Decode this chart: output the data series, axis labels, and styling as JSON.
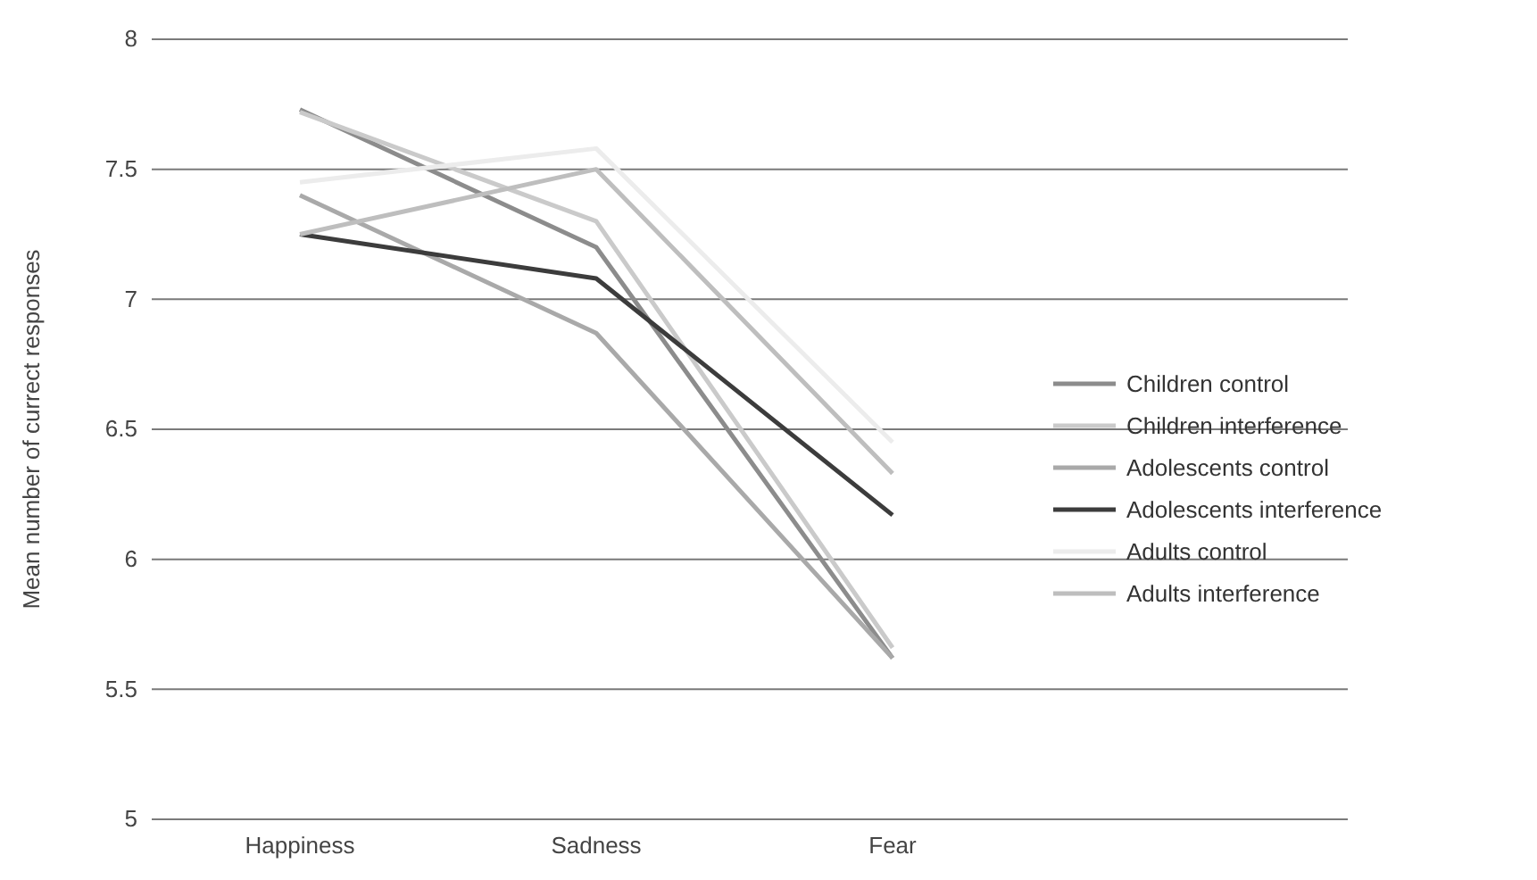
{
  "chart_data": {
    "type": "line",
    "ylabel": "Mean number of currect responses",
    "categories": [
      "Happiness",
      "Sadness",
      "Fear"
    ],
    "ylim": [
      5,
      8
    ],
    "yticks": [
      5,
      5.5,
      6,
      6.5,
      7,
      7.5,
      8
    ],
    "grid": "y",
    "legend": "right",
    "marker": "none",
    "line_style": "solid",
    "series": [
      {
        "name": "Children control",
        "color": "#8c8c8c",
        "values": [
          7.73,
          7.2,
          5.62
        ]
      },
      {
        "name": "Children interference",
        "color": "#cacaca",
        "values": [
          7.72,
          7.3,
          5.66
        ]
      },
      {
        "name": "Adolescents control",
        "color": "#a9a9a9",
        "values": [
          7.4,
          6.87,
          5.62
        ]
      },
      {
        "name": "Adolescents interference",
        "color": "#3c3c3c",
        "values": [
          7.25,
          7.08,
          6.17
        ]
      },
      {
        "name": "Adults control",
        "color": "#ececec",
        "values": [
          7.45,
          7.58,
          6.45
        ]
      },
      {
        "name": "Adults interference",
        "color": "#bebebe",
        "values": [
          7.25,
          7.5,
          6.33
        ]
      }
    ]
  }
}
